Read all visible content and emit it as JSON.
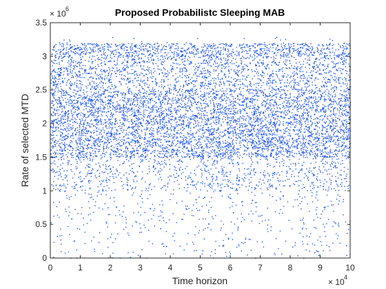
{
  "chart_data": {
    "type": "scatter",
    "title": "Proposed Probabilistc Sleeping MAB",
    "xlabel": "Time horizon",
    "ylabel": "Rate of selected MTD",
    "xlim": [
      0,
      100000
    ],
    "ylim": [
      0,
      3500000
    ],
    "x_ticks": [
      0,
      10000,
      20000,
      30000,
      40000,
      50000,
      60000,
      70000,
      80000,
      90000,
      100000
    ],
    "x_tick_labels": [
      "0",
      "1",
      "2",
      "3",
      "4",
      "5",
      "6",
      "7",
      "8",
      "9",
      "10"
    ],
    "x_exponent_label": "× 10",
    "x_exponent_power": "4",
    "y_ticks": [
      0,
      500000,
      1000000,
      1500000,
      2000000,
      2500000,
      3000000,
      3500000
    ],
    "y_tick_labels": [
      "0",
      "0.5",
      "1",
      "1.5",
      "2",
      "2.5",
      "3",
      "3.5"
    ],
    "y_exponent_label": "× 10",
    "y_exponent_power": "6",
    "grid": false,
    "box": true,
    "marker_color": "#1f55f0",
    "point_count": 100000,
    "density_profile": [
      {
        "y_range": [
          0,
          500000
        ],
        "relative_density": 0.09
      },
      {
        "y_range": [
          500000,
          1000000
        ],
        "relative_density": 0.12
      },
      {
        "y_range": [
          1000000,
          1500000
        ],
        "relative_density": 0.32
      },
      {
        "y_range": [
          1500000,
          2500000
        ],
        "relative_density": 1.0
      },
      {
        "y_range": [
          2500000,
          3000000
        ],
        "relative_density": 0.62
      },
      {
        "y_range": [
          3000000,
          3200000
        ],
        "relative_density": 1.0
      },
      {
        "y_range": [
          3200000,
          3300000
        ],
        "relative_density": 0.04
      }
    ]
  }
}
